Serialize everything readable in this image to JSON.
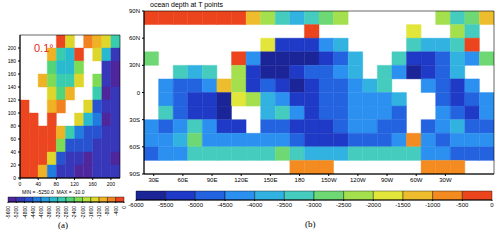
{
  "chart_data": [
    {
      "type": "heatmap",
      "label": "(a)",
      "annotation": "0.1°",
      "stats": "MIN = -5250.0  MAX = -10.0",
      "xlim": [
        0,
        220
      ],
      "ylim": [
        0,
        220
      ],
      "xticks": [
        0,
        40,
        80,
        120,
        160,
        200
      ],
      "yticks": [
        0,
        20,
        40,
        60,
        80,
        100,
        120,
        140,
        160,
        180,
        200
      ],
      "depth": [
        [
          null,
          null,
          null,
          null,
          -200,
          -1500,
          null,
          -500,
          -1000,
          -1500,
          -3000
        ],
        [
          null,
          null,
          null,
          -800,
          -3000,
          -3500,
          -200,
          null,
          -1500,
          -3500,
          -5000
        ],
        [
          null,
          null,
          null,
          -2500,
          -3500,
          -3500,
          -2000,
          null,
          null,
          -5000,
          -5250
        ],
        [
          null,
          null,
          -1000,
          -2000,
          -3000,
          -3000,
          -1500,
          null,
          -2000,
          -5000,
          -5200
        ],
        [
          null,
          null,
          null,
          -1500,
          -2500,
          -1000,
          null,
          null,
          -3000,
          -5200,
          -5000
        ],
        [
          -10,
          null,
          null,
          -1000,
          -500,
          null,
          null,
          -1500,
          -4500,
          -5000,
          -5000
        ],
        [
          -50,
          -80,
          null,
          -200,
          null,
          null,
          -1200,
          -3500,
          -4000,
          -5200,
          -5000
        ],
        [
          -60,
          -80,
          -100,
          -200,
          -1000,
          -3000,
          -4000,
          -4500,
          -4500,
          -5000,
          -5000
        ],
        [
          -60,
          -80,
          -100,
          -300,
          -2000,
          -4500,
          -4500,
          -4500,
          -4800,
          -5000,
          -5000
        ],
        [
          -80,
          -100,
          -200,
          -1500,
          -4500,
          -5000,
          -5000,
          -5200,
          -5000,
          -5000,
          -5200
        ],
        [
          -80,
          -100,
          -1000,
          -4000,
          -5000,
          -5000,
          -5200,
          -5200,
          -5000,
          -5000,
          -5000
        ]
      ],
      "colorbar": {
        "range": [
          -5600,
          0
        ],
        "ticks": [
          -5600,
          -5200,
          -4800,
          -4400,
          -4000,
          -3600,
          -3200,
          -2800,
          -2400,
          -2000,
          -1600,
          -1200,
          -800,
          -400,
          0
        ]
      }
    },
    {
      "type": "heatmap",
      "label": "(b)",
      "title": "ocean depth at T points",
      "xlim": [
        20,
        380
      ],
      "ylim": [
        -90,
        90
      ],
      "xticks": [
        {
          "value": 30,
          "label": "30E"
        },
        {
          "value": 60,
          "label": "60E"
        },
        {
          "value": 90,
          "label": "90E"
        },
        {
          "value": 120,
          "label": "120E"
        },
        {
          "value": 150,
          "label": "150E"
        },
        180,
        {
          "value": 210,
          "label": "150W"
        },
        {
          "value": 240,
          "label": "120W"
        },
        {
          "value": 270,
          "label": "90W"
        },
        {
          "value": 300,
          "label": "60W"
        },
        {
          "value": 330,
          "label": "30W"
        }
      ],
      "yticks": [
        {
          "value": -90,
          "label": "90S"
        },
        {
          "value": -60,
          "label": "60S"
        },
        {
          "value": -30,
          "label": "30S"
        },
        0,
        {
          "value": 30,
          "label": "30N"
        },
        {
          "value": 60,
          "label": "60N"
        },
        {
          "value": 90,
          "label": "90N"
        }
      ],
      "depth": [
        [
          -200,
          -300,
          -400,
          -300,
          -200,
          -100,
          -100,
          -1000,
          -2000,
          -3000,
          -3500,
          -3000,
          -2500,
          -2000,
          null,
          null,
          null,
          null,
          null,
          null,
          -2000,
          -3000,
          -2500,
          -1000
        ],
        [
          null,
          null,
          null,
          null,
          null,
          null,
          null,
          null,
          null,
          null,
          null,
          -50,
          null,
          null,
          null,
          null,
          null,
          null,
          -1500,
          null,
          null,
          -2000,
          -3000,
          null
        ],
        [
          null,
          null,
          null,
          null,
          null,
          null,
          null,
          null,
          -1500,
          -5000,
          -5000,
          -5000,
          -4000,
          -3500,
          null,
          null,
          null,
          null,
          -3000,
          -3500,
          -3500,
          -3000,
          -100,
          null
        ],
        [
          -2500,
          null,
          null,
          null,
          null,
          null,
          -100,
          -4000,
          -5500,
          -5500,
          -5500,
          -5500,
          -5000,
          -4500,
          -3500,
          null,
          null,
          -3000,
          -5000,
          -5000,
          -4500,
          -3500,
          -4000,
          -2500
        ],
        [
          null,
          null,
          -3000,
          -3500,
          -3000,
          null,
          -2000,
          -5000,
          -5500,
          -5500,
          -5000,
          -4500,
          -4500,
          -4000,
          -3500,
          null,
          -3000,
          -4000,
          -5500,
          -5000,
          -4500,
          -3500,
          null,
          null
        ],
        [
          null,
          -4000,
          -4500,
          -4500,
          -4000,
          -1000,
          -2000,
          -5000,
          -4500,
          -5000,
          -5500,
          -5000,
          -4500,
          -4500,
          -4000,
          -3500,
          -3000,
          null,
          null,
          -4000,
          -4500,
          -5000,
          -4000,
          null
        ],
        [
          null,
          -4000,
          -4500,
          -5000,
          -5000,
          -5500,
          -1500,
          -2000,
          -3500,
          -4000,
          -5000,
          -5000,
          -4500,
          -4500,
          -4000,
          -4000,
          -4000,
          -3500,
          null,
          null,
          -4500,
          -5000,
          -4500,
          -4000
        ],
        [
          null,
          -3000,
          -4500,
          -5000,
          -5000,
          -5500,
          null,
          null,
          -3500,
          -3000,
          -4000,
          -5000,
          -4500,
          -4500,
          -4000,
          -4000,
          -4000,
          -4500,
          null,
          null,
          -4000,
          -4500,
          -5000,
          -4000
        ],
        [
          -4000,
          -4500,
          -4000,
          -3000,
          -4000,
          -5000,
          -5000,
          null,
          -4500,
          -4500,
          -5000,
          -5000,
          -5000,
          -4500,
          -4000,
          -4000,
          -4500,
          -4500,
          null,
          -4500,
          -4000,
          -3500,
          -4500,
          -4500
        ],
        [
          -4000,
          -4000,
          -3500,
          -2500,
          -4000,
          -4000,
          -4000,
          -4000,
          -4000,
          -4000,
          -4500,
          -5000,
          -5000,
          -5000,
          -4500,
          -4500,
          -4500,
          -4000,
          -500,
          -4000,
          -4500,
          -4000,
          -4000,
          -4000
        ],
        [
          -4500,
          -4000,
          -4000,
          -3000,
          -3000,
          -3000,
          -3000,
          -3000,
          -3000,
          -2500,
          -3000,
          -3500,
          -3500,
          -3500,
          -3000,
          -3000,
          -3000,
          -3000,
          -3000,
          -4000,
          -4000,
          -4500,
          -4500,
          -4500
        ],
        [
          null,
          null,
          null,
          null,
          null,
          null,
          null,
          null,
          null,
          null,
          -500,
          -500,
          -500,
          null,
          null,
          null,
          null,
          null,
          null,
          -500,
          -500,
          -500,
          null,
          null
        ]
      ],
      "colorbar": {
        "range": [
          -6000,
          0
        ],
        "ticks": [
          -6000,
          -5500,
          -5000,
          -4500,
          -4000,
          -3500,
          -3000,
          -2500,
          -2000,
          -1500,
          -1000,
          -500,
          0
        ]
      }
    }
  ]
}
